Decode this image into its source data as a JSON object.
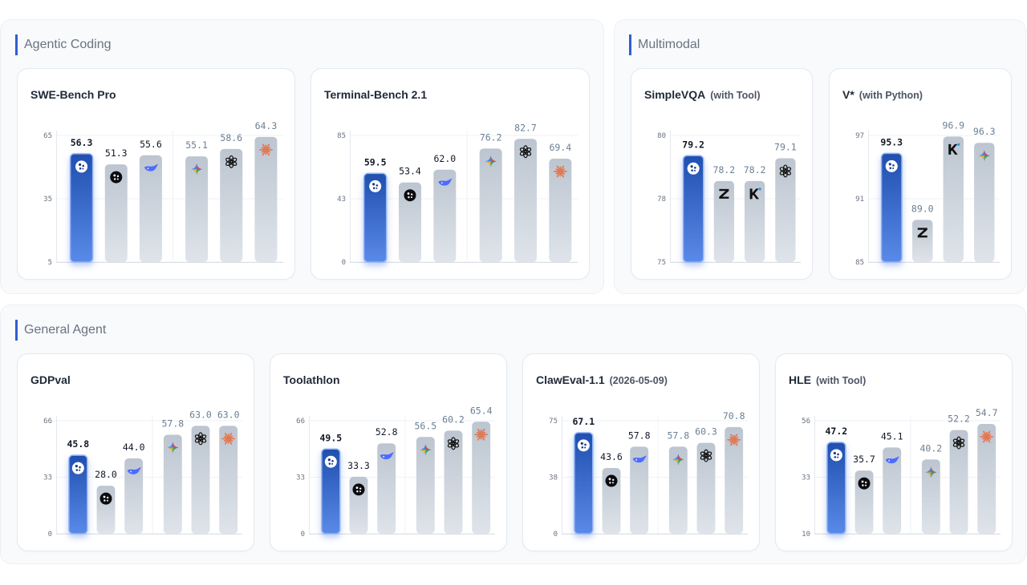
{
  "sections": [
    {
      "title": "Agentic Coding"
    },
    {
      "title": "Multimodal"
    },
    {
      "title": "General Agent"
    }
  ],
  "colors": {
    "highlight_top": "#1f4fb0",
    "highlight_bottom": "#5a8ae8",
    "bar_top": "#bcc5d0",
    "bar_bottom": "#dfe4ea",
    "value_dark": "#111827",
    "value_muted": "#6b7f94"
  },
  "chart_data": [
    {
      "type": "bar",
      "title": "SWE-Bench Pro",
      "subtitle": "",
      "yticks": [
        "65",
        "35",
        "5"
      ],
      "ylim": [
        5,
        65
      ],
      "groups": [
        3,
        3
      ],
      "values": [
        56.3,
        51.3,
        55.6,
        55.1,
        58.6,
        64.3
      ],
      "labels": [
        "56.3",
        "51.3",
        "55.6",
        "55.1",
        "58.6",
        "64.3"
      ],
      "icons": [
        "logo-hub-icon",
        "logo-dots-icon",
        "whale-icon",
        "gemini-star-icon",
        "openai-icon",
        "claude-burst-icon"
      ],
      "highlight": [
        0
      ],
      "dark_values": [
        0,
        1,
        2
      ]
    },
    {
      "type": "bar",
      "title": "Terminal-Bench 2.1",
      "subtitle": "",
      "yticks": [
        "85",
        "43",
        "0"
      ],
      "ylim": [
        0,
        85
      ],
      "groups": [
        3,
        3
      ],
      "values": [
        59.5,
        53.4,
        62.0,
        76.2,
        82.7,
        69.4
      ],
      "labels": [
        "59.5",
        "53.4",
        "62.0",
        "76.2",
        "82.7",
        "69.4"
      ],
      "icons": [
        "logo-hub-icon",
        "logo-dots-icon",
        "whale-icon",
        "gemini-star-icon",
        "openai-icon",
        "claude-burst-icon"
      ],
      "highlight": [
        0
      ],
      "dark_values": [
        0,
        1,
        2
      ]
    },
    {
      "type": "bar",
      "title": "SimpleVQA",
      "subtitle": "(with Tool)",
      "yticks": [
        "80",
        "78",
        "75"
      ],
      "ylim": [
        75,
        80
      ],
      "groups": [
        4
      ],
      "values": [
        79.2,
        78.2,
        78.2,
        79.1
      ],
      "labels": [
        "79.2",
        "78.2",
        "78.2",
        "79.1"
      ],
      "icons": [
        "logo-hub-icon",
        "z-letter-icon",
        "k-letter-icon",
        "openai-icon"
      ],
      "highlight": [
        0
      ],
      "dark_values": [
        0
      ]
    },
    {
      "type": "bar",
      "title": "V*",
      "subtitle": "(with Python)",
      "yticks": [
        "97",
        "91",
        "85"
      ],
      "ylim": [
        85,
        97
      ],
      "groups": [
        4
      ],
      "values": [
        95.3,
        89.0,
        96.9,
        96.3
      ],
      "labels": [
        "95.3",
        "89.0",
        "96.9",
        "96.3"
      ],
      "icons": [
        "logo-hub-icon",
        "z-letter-icon",
        "k-letter-icon",
        "gemini-star-icon"
      ],
      "highlight": [
        0
      ],
      "dark_values": [
        0
      ]
    },
    {
      "type": "bar",
      "title": "GDPval",
      "subtitle": "",
      "yticks": [
        "66",
        "33",
        "0"
      ],
      "ylim": [
        0,
        66
      ],
      "groups": [
        3,
        3
      ],
      "values": [
        45.8,
        28.0,
        44.0,
        57.8,
        63.0,
        63.0
      ],
      "labels": [
        "45.8",
        "28.0",
        "44.0",
        "57.8",
        "63.0",
        "63.0"
      ],
      "icons": [
        "logo-hub-icon",
        "logo-dots-icon",
        "whale-icon",
        "gemini-star-icon",
        "openai-icon",
        "claude-burst-icon"
      ],
      "highlight": [
        0
      ],
      "dark_values": [
        0,
        1,
        2
      ]
    },
    {
      "type": "bar",
      "title": "Toolathlon",
      "subtitle": "",
      "yticks": [
        "66",
        "33",
        "0"
      ],
      "ylim": [
        0,
        66
      ],
      "groups": [
        3,
        3
      ],
      "values": [
        49.5,
        33.3,
        52.8,
        56.5,
        60.2,
        65.4
      ],
      "labels": [
        "49.5",
        "33.3",
        "52.8",
        "56.5",
        "60.2",
        "65.4"
      ],
      "icons": [
        "logo-hub-icon",
        "logo-dots-icon",
        "whale-icon",
        "gemini-star-icon",
        "openai-icon",
        "claude-burst-icon"
      ],
      "highlight": [
        0
      ],
      "dark_values": [
        0,
        1,
        2
      ]
    },
    {
      "type": "bar",
      "title": "ClawEval-1.1",
      "subtitle": "(2026-05-09)",
      "yticks": [
        "75",
        "38",
        "0"
      ],
      "ylim": [
        0,
        75
      ],
      "groups": [
        3,
        3
      ],
      "values": [
        67.1,
        43.6,
        57.8,
        57.8,
        60.3,
        70.8
      ],
      "labels": [
        "67.1",
        "43.6",
        "57.8",
        "57.8",
        "60.3",
        "70.8"
      ],
      "icons": [
        "logo-hub-icon",
        "logo-dots-icon",
        "whale-icon",
        "gemini-star-icon",
        "openai-icon",
        "claude-burst-icon"
      ],
      "highlight": [
        0
      ],
      "dark_values": [
        0,
        1,
        2
      ]
    },
    {
      "type": "bar",
      "title": "HLE",
      "subtitle": "(with Tool)",
      "yticks": [
        "56",
        "33",
        "10"
      ],
      "ylim": [
        10,
        56
      ],
      "groups": [
        3,
        3
      ],
      "values": [
        47.2,
        35.7,
        45.1,
        40.2,
        52.2,
        54.7
      ],
      "labels": [
        "47.2",
        "35.7",
        "45.1",
        "40.2",
        "52.2",
        "54.7"
      ],
      "icons": [
        "logo-hub-icon",
        "logo-dots-icon",
        "whale-icon",
        "gemini-star-icon",
        "openai-icon",
        "claude-burst-icon"
      ],
      "highlight": [
        0
      ],
      "dark_values": [
        0,
        1,
        2
      ]
    }
  ]
}
